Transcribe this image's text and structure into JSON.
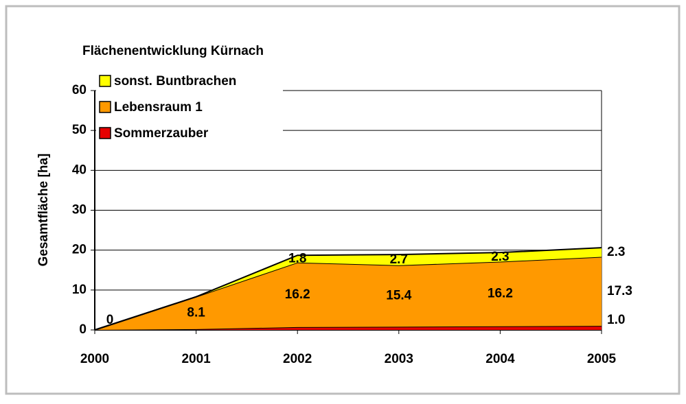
{
  "chart_data": {
    "type": "stacked-area",
    "title": "Flächenentwicklung Kürnach",
    "y_label": "Gesamtfläche [ha]",
    "categories": [
      "2000",
      "2001",
      "2002",
      "2003",
      "2004",
      "2005"
    ],
    "series": [
      {
        "name": "Sommerzauber",
        "color": "#e60000",
        "values": [
          0,
          0.2,
          0.7,
          0.8,
          0.9,
          1.0
        ],
        "value_labels": [
          null,
          "0.2",
          "0.7",
          "0.8",
          "0.9",
          "1.0"
        ]
      },
      {
        "name": "Lebensraum 1",
        "color": "#ff9900",
        "values": [
          0,
          8.1,
          16.2,
          15.4,
          16.2,
          17.3
        ],
        "value_labels": [
          "0",
          "8.1",
          "16.2",
          "15.4",
          "16.2",
          "17.3"
        ]
      },
      {
        "name": "sonst. Buntbrachen",
        "color": "#ffff00",
        "values": [
          0,
          0,
          1.8,
          2.7,
          2.3,
          2.3
        ],
        "value_labels": [
          null,
          null,
          "1.8",
          "2.7",
          "2.3",
          "2.3"
        ]
      }
    ],
    "ylim": [
      0,
      60
    ],
    "yticks": [
      0,
      10,
      20,
      30,
      40,
      50,
      60
    ],
    "grid": true,
    "legend": "upper left"
  }
}
